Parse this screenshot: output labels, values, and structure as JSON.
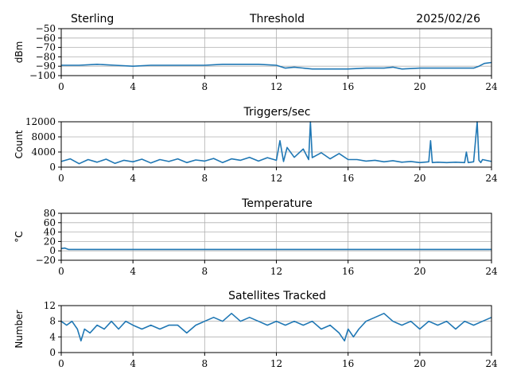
{
  "header": {
    "site": "Sterling",
    "date": "2025/02/26"
  },
  "colors": {
    "series": "#1f77b4",
    "grid": "#b0b0b0",
    "axes": "#000000"
  },
  "chart_data": [
    {
      "type": "line",
      "title": "Threshold",
      "xlabel": "",
      "ylabel": "dBm",
      "xlim": [
        0,
        24
      ],
      "ylim": [
        -100,
        -50
      ],
      "xticks": [
        0,
        4,
        8,
        12,
        16,
        20,
        24
      ],
      "yticks": [
        -100,
        -90,
        -80,
        -70,
        -60,
        -50
      ],
      "grid": true,
      "series": [
        {
          "x": [
            0,
            1,
            2,
            3,
            4,
            5,
            6,
            7,
            8,
            9,
            10,
            11,
            12,
            12.5,
            13,
            14,
            15,
            16,
            17,
            18,
            18.5,
            19,
            20,
            21,
            22,
            23,
            23.3,
            23.6,
            24
          ],
          "values": [
            -89,
            -89,
            -88,
            -89,
            -90,
            -89,
            -89,
            -89,
            -89,
            -88,
            -88,
            -88,
            -89,
            -92,
            -91,
            -93,
            -93,
            -93,
            -92,
            -92,
            -91,
            -93,
            -92,
            -92,
            -92,
            -92,
            -90,
            -87,
            -86
          ]
        }
      ]
    },
    {
      "type": "line",
      "title": "Triggers/sec",
      "xlabel": "",
      "ylabel": "Count",
      "xlim": [
        0,
        24
      ],
      "ylim": [
        0,
        12000
      ],
      "xticks": [
        0,
        4,
        8,
        12,
        16,
        20,
        24
      ],
      "yticks": [
        0,
        4000,
        8000,
        12000
      ],
      "grid": true,
      "series": [
        {
          "x": [
            0,
            0.5,
            1,
            1.5,
            2,
            2.5,
            3,
            3.5,
            4,
            4.5,
            5,
            5.5,
            6,
            6.5,
            7,
            7.5,
            8,
            8.5,
            9,
            9.5,
            10,
            10.5,
            11,
            11.5,
            12,
            12.2,
            12.4,
            12.6,
            13,
            13.5,
            13.8,
            13.9,
            14,
            14.5,
            15,
            15.5,
            16,
            16.5,
            17,
            17.5,
            18,
            18.5,
            19,
            19.5,
            20,
            20.5,
            20.6,
            20.7,
            21,
            21.5,
            22,
            22.5,
            22.6,
            22.7,
            23,
            23.2,
            23.3,
            23.4,
            23.5,
            24
          ],
          "values": [
            1500,
            2200,
            900,
            2000,
            1300,
            2100,
            1000,
            1800,
            1400,
            2100,
            1100,
            2000,
            1500,
            2200,
            1200,
            1900,
            1600,
            2300,
            1200,
            2200,
            1800,
            2600,
            1600,
            2500,
            1800,
            7000,
            1500,
            5200,
            2600,
            4800,
            2000,
            12000,
            2500,
            3800,
            2200,
            3600,
            2000,
            2000,
            1600,
            1800,
            1400,
            1700,
            1300,
            1500,
            1200,
            1400,
            7000,
            1200,
            1300,
            1200,
            1300,
            1200,
            4000,
            1200,
            1400,
            12000,
            1800,
            1200,
            2000,
            1500
          ]
        }
      ]
    },
    {
      "type": "line",
      "title": "Temperature",
      "xlabel": "",
      "ylabel": "°C",
      "xlim": [
        0,
        24
      ],
      "ylim": [
        -20,
        80
      ],
      "xticks": [
        0,
        4,
        8,
        12,
        16,
        20,
        24
      ],
      "yticks": [
        -20,
        0,
        20,
        40,
        60,
        80
      ],
      "grid": true,
      "series": [
        {
          "x": [
            0,
            0.2,
            0.4,
            2,
            6,
            10,
            14,
            18,
            22,
            24
          ],
          "values": [
            5,
            6,
            3,
            3,
            3,
            3,
            3,
            3,
            3,
            3
          ]
        }
      ]
    },
    {
      "type": "line",
      "title": "Satellites Tracked",
      "xlabel": "",
      "ylabel": "Number",
      "xlim": [
        0,
        24
      ],
      "ylim": [
        0,
        12
      ],
      "xticks": [
        0,
        4,
        8,
        12,
        16,
        20,
        24
      ],
      "yticks": [
        0,
        4,
        8,
        12
      ],
      "grid": true,
      "series": [
        {
          "x": [
            0,
            0.3,
            0.6,
            0.9,
            1.1,
            1.3,
            1.6,
            2,
            2.4,
            2.8,
            3.2,
            3.6,
            4,
            4.5,
            5,
            5.5,
            6,
            6.5,
            7,
            7.5,
            8,
            8.5,
            9,
            9.5,
            10,
            10.5,
            11,
            11.5,
            12,
            12.5,
            13,
            13.5,
            14,
            14.5,
            15,
            15.5,
            15.8,
            16,
            16.3,
            16.6,
            17,
            17.5,
            18,
            18.5,
            19,
            19.5,
            20,
            20.5,
            21,
            21.5,
            22,
            22.5,
            23,
            23.5,
            24
          ],
          "values": [
            8,
            7,
            8,
            6,
            3,
            6,
            5,
            7,
            6,
            8,
            6,
            8,
            7,
            6,
            7,
            6,
            7,
            7,
            5,
            7,
            8,
            9,
            8,
            10,
            8,
            9,
            8,
            7,
            8,
            7,
            8,
            7,
            8,
            6,
            7,
            5,
            3,
            6,
            4,
            6,
            8,
            9,
            10,
            8,
            7,
            8,
            6,
            8,
            7,
            8,
            6,
            8,
            7,
            8,
            9
          ]
        }
      ]
    }
  ]
}
